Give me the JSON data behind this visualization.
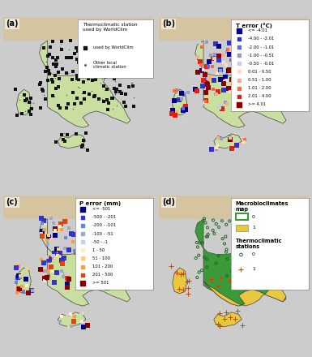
{
  "figure_size": [
    3.85,
    4.4
  ],
  "dpi": 100,
  "sea_color": "#b8dff0",
  "alps_color": "#d4c4a0",
  "italy_outline_color": "#444444",
  "italy_fill_mainland": "#c8dfa0",
  "map_d_temperate_color": "#3a9a3a",
  "map_d_med_color": "#e8c840",
  "panel_labels": [
    "(a)",
    "(b)",
    "(c)",
    "(d)"
  ],
  "legend_b_title": "T error (°C)",
  "legend_b_items": [
    {
      "label": "<= -4.01",
      "color": "#00008b",
      "size": 8
    },
    {
      "label": "-4.00 - -2.01",
      "color": "#3333cc",
      "size": 7
    },
    {
      "label": "-2.00 - -1.01",
      "color": "#6666dd",
      "size": 6
    },
    {
      "label": "-1.00 - -0.51",
      "color": "#9999cc",
      "size": 5
    },
    {
      "label": "-0.50 - -0.01",
      "color": "#ccccdd",
      "size": 4
    },
    {
      "label": "0.01 - 0.50",
      "color": "#ffddcc",
      "size": 4
    },
    {
      "label": "0.51 - 1.00",
      "color": "#ffaa88",
      "size": 5
    },
    {
      "label": "1.01 - 2.00",
      "color": "#ff6644",
      "size": 6
    },
    {
      "label": "2.01 - 4.00",
      "color": "#dd2211",
      "size": 7
    },
    {
      "label": ">= 4.01",
      "color": "#880000",
      "size": 8
    }
  ],
  "legend_c_title": "P error (mm)",
  "legend_c_items": [
    {
      "label": "<= -501",
      "color": "#00008b",
      "size": 8
    },
    {
      "label": "-500 - -201",
      "color": "#3333cc",
      "size": 7
    },
    {
      "label": "-200 - -101",
      "color": "#6688cc",
      "size": 6
    },
    {
      "label": "-100 - -51",
      "color": "#99aacc",
      "size": 5
    },
    {
      "label": "-50 - -1",
      "color": "#ccccdd",
      "size": 4
    },
    {
      "label": "1 - 50",
      "color": "#ffeecc",
      "size": 4
    },
    {
      "label": "51 - 100",
      "color": "#ffcc88",
      "size": 5
    },
    {
      "label": "101 - 200",
      "color": "#ff9944",
      "size": 6
    },
    {
      "label": "201 - 500",
      "color": "#dd4411",
      "size": 7
    },
    {
      "label": ">= 501",
      "color": "#880000",
      "size": 8
    }
  ]
}
